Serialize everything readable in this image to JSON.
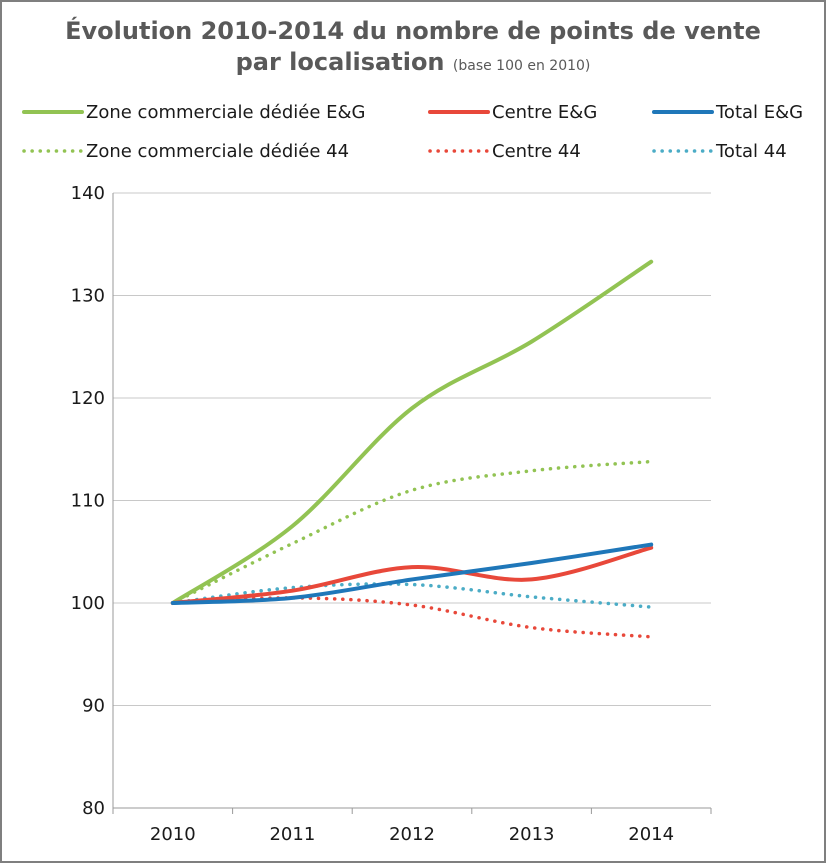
{
  "chart_data": {
    "type": "line",
    "title_line1": "Évolution 2010-2014 du nombre de points de vente",
    "title_line2": "par localisation",
    "title_note": "(base 100 en 2010)",
    "categories": [
      "2010",
      "2011",
      "2012",
      "2013",
      "2014"
    ],
    "ylim": [
      80,
      140
    ],
    "yticks": [
      80,
      90,
      100,
      110,
      120,
      130,
      140
    ],
    "grid": true,
    "legend_position": "top",
    "series": [
      {
        "name": "Zone commerciale dédiée E&G",
        "values": [
          100,
          107.5,
          119,
          125.5,
          133.3
        ],
        "color": "#92c353",
        "style": "solid"
      },
      {
        "name": "Centre E&G",
        "values": [
          100,
          101.2,
          103.5,
          102.3,
          105.4
        ],
        "color": "#e8483a",
        "style": "solid"
      },
      {
        "name": "Total E&G",
        "values": [
          100,
          100.5,
          102.3,
          103.9,
          105.7
        ],
        "color": "#1f77b9",
        "style": "solid"
      },
      {
        "name": "Zone commerciale dédiée 44",
        "values": [
          100,
          105.8,
          111,
          112.9,
          113.8
        ],
        "color": "#92c353",
        "style": "dotted"
      },
      {
        "name": "Centre 44",
        "values": [
          100,
          100.5,
          99.8,
          97.6,
          96.7
        ],
        "color": "#e8483a",
        "style": "dotted"
      },
      {
        "name": "Total 44",
        "values": [
          100,
          101.5,
          101.8,
          100.6,
          99.6
        ],
        "color": "#4bacc6",
        "style": "dotted"
      }
    ]
  }
}
